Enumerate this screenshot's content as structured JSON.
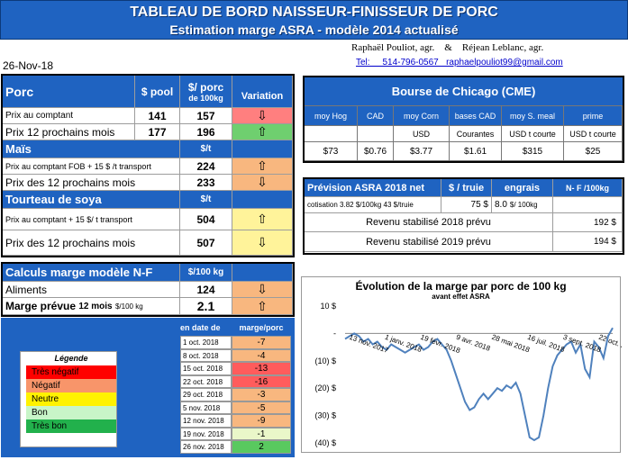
{
  "header": {
    "title": "TABLEAU DE BORD NAISSEUR-FINISSEUR DE PORC",
    "subtitle": "Estimation marge ASRA - modèle 2014 actualisé"
  },
  "date": "26-Nov-18",
  "authors": {
    "names": "Raphaël Pouliot, agr.    &    Réjean Leblanc, agr.",
    "contact": "Tel:     514-796-0567   raphaelpouliot99@gmail.com"
  },
  "porc": {
    "title": "Porc",
    "col1": "$ pool",
    "col2a": "$/ porc",
    "col2b": "de 100kg",
    "col3": "Variation",
    "rows": [
      {
        "label": "Prix au comptant",
        "v1": "141",
        "v2": "157",
        "dir": "down"
      },
      {
        "label": "Prix 12 prochains mois",
        "v1": "177",
        "v2": "196",
        "dir": "up"
      }
    ]
  },
  "mais": {
    "title": "Maïs",
    "unit": "$/t",
    "rows": [
      {
        "label": "Prix au comptant FOB + 15 $ /t transport",
        "v": "224",
        "dir": "up"
      },
      {
        "label": "Prix des 12 prochains mois",
        "v": "233",
        "dir": "down"
      }
    ]
  },
  "soya": {
    "title": "Tourteau de soya",
    "unit": "$/t",
    "rows": [
      {
        "label": "Prix au comptant + 15 $/ t  transport",
        "v": "504",
        "dir": "up"
      },
      {
        "label": "Prix des 12 prochains mois",
        "v": "507",
        "dir": "down"
      }
    ]
  },
  "calc": {
    "title": "Calculs marge  modèle N-F",
    "unit": "$/100 kg",
    "aliments_label": "Aliments",
    "aliments": "124",
    "marge_label": "Marge prévue",
    "marge_sub": "12 mois",
    "marge_unit": "$/100 kg",
    "marge": "2.1"
  },
  "cme": {
    "title": "Bourse de Chicago (CME)",
    "heads": [
      "moy Hog",
      "CAD",
      "moy Corn",
      "bases CAD",
      "moy S. meal",
      "prime"
    ],
    "units": [
      "",
      "",
      "USD",
      "Courantes",
      "USD t courte",
      "USD t courte"
    ],
    "values": [
      "$73",
      "$0.76",
      "$3.77",
      "$1.61",
      "$315",
      "$25"
    ]
  },
  "asra": {
    "title": "Prévision ASRA 2018 net",
    "col1": "$ / truie",
    "col2": "engrais",
    "col3": "N- F /100kg",
    "cot_label": "cotisation 3.82 $/100kg  43 $/truie",
    "cot_val": "75 $",
    "eng_val": "8.0",
    "eng_unit": "$/ 100kg",
    "rev2018_label": "Revenu stabilisé 2018 prévu",
    "rev2018": "192 $",
    "rev2019_label": "Revenu stabilisé 2019 prévu",
    "rev2019": "194 $"
  },
  "history": {
    "col_date": "en date de",
    "col_marge": "marge/porc",
    "rows": [
      {
        "d": "1 oct. 2018",
        "v": "-7",
        "c": "orange"
      },
      {
        "d": "8 oct. 2018",
        "v": "-4",
        "c": "orange"
      },
      {
        "d": "15 oct. 2018",
        "v": "-13",
        "c": "red"
      },
      {
        "d": "22 oct. 2018",
        "v": "-16",
        "c": "red"
      },
      {
        "d": "29 oct. 2018",
        "v": "-3",
        "c": "orange"
      },
      {
        "d": "5 nov. 2018",
        "v": "-5",
        "c": "orange"
      },
      {
        "d": "12 nov. 2018",
        "v": "-9",
        "c": "orange"
      },
      {
        "d": "19 nov. 2018",
        "v": "-1",
        "c": "pale"
      },
      {
        "d": "26 nov. 2018",
        "v": "2",
        "c": "green"
      }
    ]
  },
  "legend": {
    "title": "Légende",
    "items": [
      "Très négatif",
      "Négatif",
      "Neutre",
      "Bon",
      "Très bon"
    ],
    "colors": [
      "#ff0000",
      "#f8956a",
      "#fff200",
      "#c8f5c8",
      "#22b14c"
    ]
  },
  "chart_data": {
    "type": "line",
    "title": "Évolution de la marge par porc de 100 kg",
    "subtitle": "avant effet ASRA",
    "yticks": [
      "10 $",
      "-",
      "(10) $",
      "(20) $",
      "(30) $",
      "(40) $"
    ],
    "ylim": [
      -40,
      10
    ],
    "xticks": [
      "13 nov. 2017",
      "1 janv. 2018",
      "19 févr. 2018",
      "9 avr. 2018",
      "28 mai 2018",
      "16 juil. 2018",
      "3 sept. 2018",
      "22 oct. 2018"
    ],
    "series": [
      {
        "values": [
          -2,
          -1,
          0,
          -1,
          -3,
          -2,
          -4,
          -3,
          -5,
          -6,
          -4,
          -5,
          -6,
          -7,
          -6,
          -5,
          -4,
          -6,
          -5,
          -3,
          -2,
          -4,
          -6,
          -10,
          -15,
          -20,
          -25,
          -28,
          -27,
          -24,
          -22,
          -24,
          -22,
          -20,
          -21,
          -19,
          -20,
          -18,
          -22,
          -30,
          -38,
          -39,
          -38,
          -30,
          -20,
          -12,
          -8,
          -6,
          -4,
          -3,
          -7,
          -4,
          -13,
          -16,
          -3,
          -5,
          -9,
          -1,
          2
        ]
      }
    ]
  }
}
